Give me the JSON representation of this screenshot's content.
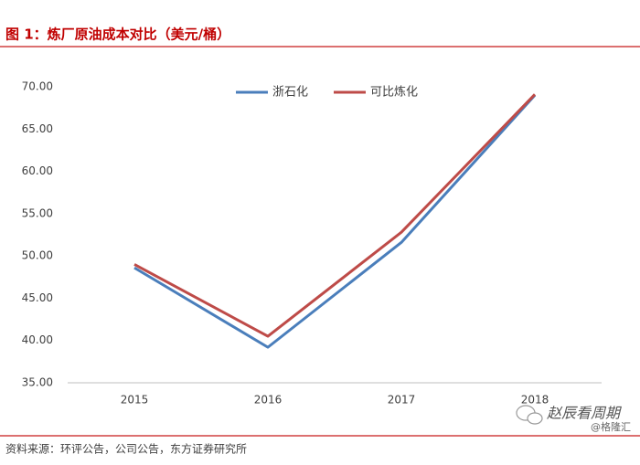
{
  "chart_data": {
    "type": "line",
    "title": "图 1：炼厂原油成本对比（美元/桶）",
    "categories": [
      "2015",
      "2016",
      "2017",
      "2018"
    ],
    "series": [
      {
        "name": "浙石化",
        "color": "#4a7ebb",
        "values": [
          48.6,
          39.2,
          51.6,
          69.0
        ]
      },
      {
        "name": "可比炼化",
        "color": "#be4b48",
        "values": [
          49.0,
          40.5,
          52.8,
          69.1
        ]
      }
    ],
    "ylim": [
      35,
      70
    ],
    "yticks": [
      {
        "value": 35,
        "label": "35.00"
      },
      {
        "value": 40,
        "label": "40.00"
      },
      {
        "value": 45,
        "label": "45.00"
      },
      {
        "value": 50,
        "label": "50.00"
      },
      {
        "value": 55,
        "label": "55.00"
      },
      {
        "value": 60,
        "label": "60.00"
      },
      {
        "value": 65,
        "label": "65.00"
      },
      {
        "value": 70,
        "label": "70.00"
      }
    ],
    "grid": false,
    "source": "资料来源：环评公告，公司公告，东方证券研究所",
    "watermark": "赵辰看周期",
    "watermark_sub": "@格隆汇"
  }
}
